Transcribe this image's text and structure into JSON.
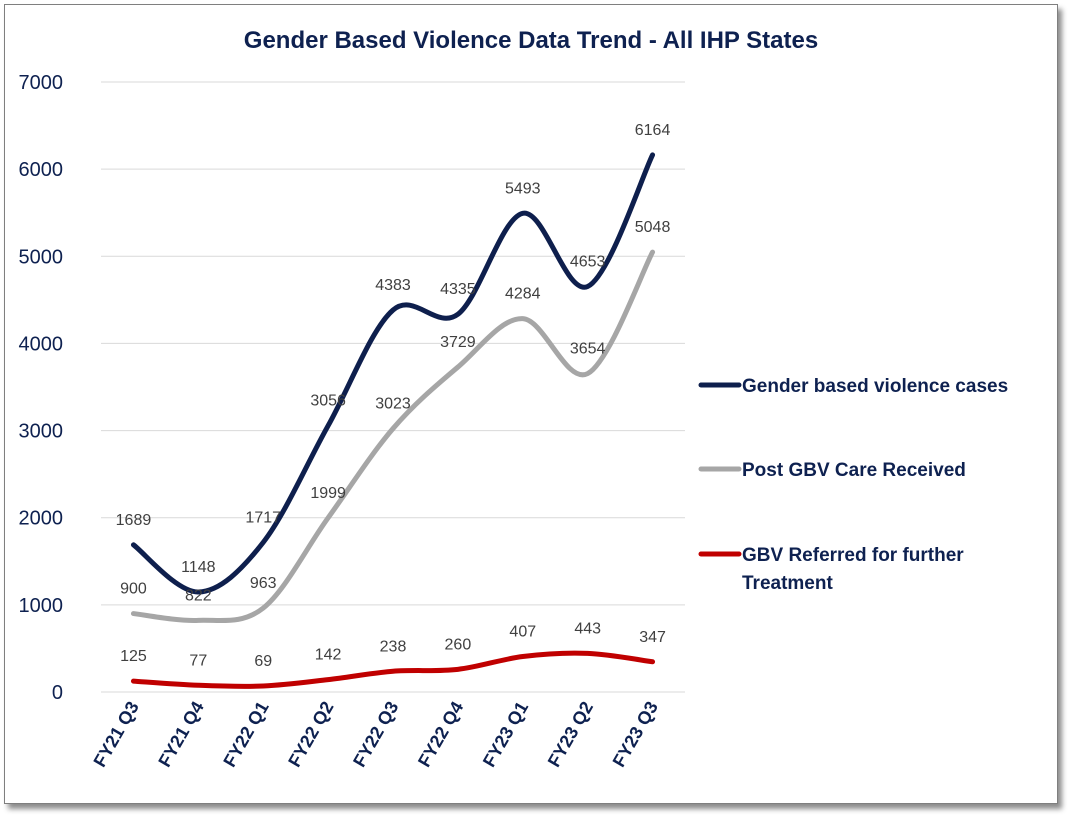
{
  "chart_data": {
    "type": "line",
    "title": "Gender Based Violence Data Trend - All IHP States",
    "categories": [
      "FY21 Q3",
      "FY21 Q4",
      "FY22 Q1",
      "FY22 Q2",
      "FY22 Q3",
      "FY22 Q4",
      "FY23 Q1",
      "FY23 Q2",
      "FY23 Q3"
    ],
    "yticks": [
      "0",
      "1000",
      "2000",
      "3000",
      "4000",
      "5000",
      "6000",
      "7000"
    ],
    "ylim": [
      0,
      7000
    ],
    "grid": true,
    "legend_position": "right",
    "smoothed": true,
    "series": [
      {
        "name": "Gender based violence cases",
        "name_lines": [
          "Gender based violence cases"
        ],
        "color": "#0e1f4d",
        "values": [
          1689,
          1148,
          1717,
          3056,
          4383,
          4335,
          5493,
          4653,
          6164
        ]
      },
      {
        "name": "Post GBV Care Received",
        "name_lines": [
          "Post GBV Care Received"
        ],
        "color": "#a6a6a6",
        "values": [
          900,
          822,
          963,
          1999,
          3023,
          3729,
          4284,
          3654,
          5048
        ]
      },
      {
        "name": "GBV Referred for further Treatment",
        "name_lines": [
          "GBV Referred for further",
          "Treatment"
        ],
        "color": "#c00000",
        "values": [
          125,
          77,
          69,
          142,
          238,
          260,
          407,
          443,
          347
        ]
      }
    ]
  }
}
